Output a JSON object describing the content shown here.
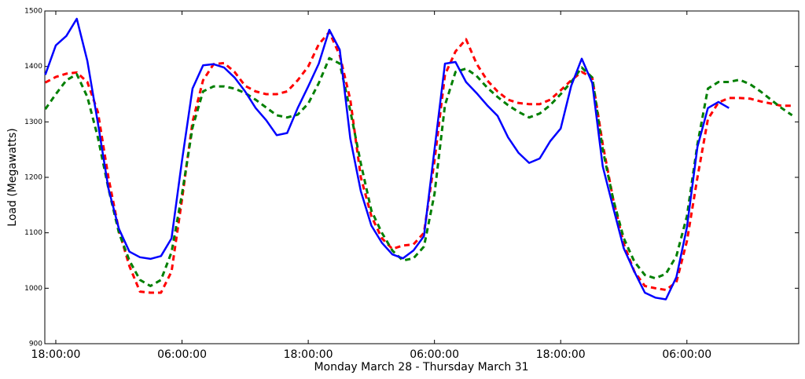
{
  "chart_data": {
    "type": "line",
    "x_label": "Monday March 28 - Thursday March 31",
    "y_label": "Load (Megawatts)",
    "categories": [
      null,
      "18:00:00",
      null,
      null,
      null,
      null,
      null,
      null,
      null,
      null,
      null,
      null,
      null,
      "06:00:00",
      null,
      null,
      null,
      null,
      null,
      null,
      null,
      null,
      null,
      null,
      null,
      "18:00:00",
      null,
      null,
      null,
      null,
      null,
      null,
      null,
      null,
      null,
      null,
      null,
      "06:00:00",
      null,
      null,
      null,
      null,
      null,
      null,
      null,
      null,
      null,
      null,
      null,
      "18:00:00",
      null,
      null,
      null,
      null,
      null,
      null,
      null,
      null,
      null,
      null,
      null,
      "06:00:00",
      null,
      null,
      null,
      null,
      null,
      null,
      null,
      null,
      null,
      null
    ],
    "ylim": [
      900,
      1500
    ],
    "yticks": [
      900,
      1000,
      1100,
      1200,
      1300,
      1400,
      1500
    ],
    "series": [
      {
        "color": "#0000ff",
        "dashed": false,
        "values": [
          1385,
          1438,
          1455,
          1486,
          1410,
          1298,
          1180,
          1107,
          1066,
          1056,
          1053,
          1058,
          1090,
          1230,
          1360,
          1402,
          1404,
          1398,
          1380,
          1355,
          1325,
          1303,
          1276,
          1280,
          1325,
          1364,
          1405,
          1466,
          1430,
          1270,
          1175,
          1113,
          1082,
          1061,
          1054,
          1068,
          1094,
          1250,
          1405,
          1408,
          1372,
          1352,
          1330,
          1311,
          1272,
          1244,
          1226,
          1234,
          1265,
          1288,
          1365,
          1414,
          1370,
          1220,
          1145,
          1072,
          1030,
          992,
          983,
          980,
          1020,
          1110,
          1255,
          1325,
          1336,
          1325,
          null,
          null,
          null,
          null,
          null,
          null
        ]
      },
      {
        "color": "#ff0000",
        "dashed": true,
        "values": [
          1371,
          1381,
          1387,
          1389,
          1372,
          1318,
          1200,
          1104,
          1040,
          994,
          992,
          992,
          1030,
          1160,
          1300,
          1375,
          1404,
          1406,
          1390,
          1365,
          1355,
          1350,
          1350,
          1355,
          1375,
          1400,
          1440,
          1462,
          1420,
          1340,
          1200,
          1130,
          1090,
          1071,
          1077,
          1079,
          1100,
          1230,
          1385,
          1427,
          1449,
          1405,
          1375,
          1355,
          1340,
          1334,
          1332,
          1332,
          1340,
          1357,
          1375,
          1390,
          1380,
          1260,
          1160,
          1080,
          1030,
          1004,
          1000,
          997,
          1011,
          1085,
          1200,
          1305,
          1335,
          1343,
          1343,
          1342,
          1337,
          1333,
          1329,
          1329
        ]
      },
      {
        "color": "#007f00",
        "dashed": true,
        "values": [
          1323,
          1350,
          1375,
          1386,
          1345,
          1272,
          1180,
          1100,
          1050,
          1015,
          1004,
          1015,
          1065,
          1170,
          1290,
          1355,
          1364,
          1364,
          1360,
          1352,
          1340,
          1326,
          1312,
          1308,
          1313,
          1333,
          1370,
          1415,
          1405,
          1320,
          1225,
          1140,
          1100,
          1068,
          1050,
          1054,
          1075,
          1170,
          1330,
          1390,
          1396,
          1383,
          1362,
          1345,
          1330,
          1318,
          1308,
          1315,
          1330,
          1350,
          1372,
          1398,
          1380,
          1250,
          1160,
          1090,
          1048,
          1024,
          1018,
          1026,
          1058,
          1130,
          1260,
          1360,
          1372,
          1372,
          1376,
          1368,
          1355,
          1340,
          1325,
          1312
        ]
      }
    ]
  }
}
